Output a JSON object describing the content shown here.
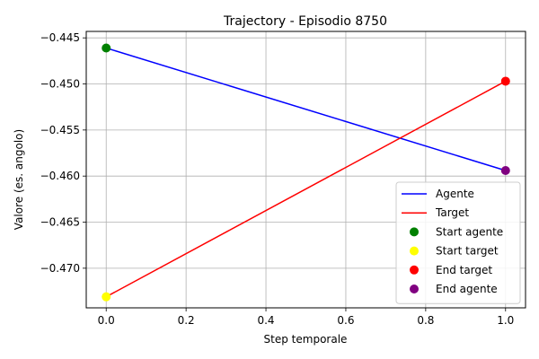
{
  "chart_data": {
    "type": "line",
    "title": "Trajectory - Episodio 8750",
    "xlabel": "Step temporale",
    "ylabel": "Valore (es. angolo)",
    "xlim": [
      -0.05,
      1.05
    ],
    "ylim": [
      -0.4743,
      -0.4443
    ],
    "xticks": [
      0.0,
      0.2,
      0.4,
      0.6,
      0.8,
      1.0
    ],
    "xtick_labels": [
      "0.0",
      "0.2",
      "0.4",
      "0.6",
      "0.8",
      "1.0"
    ],
    "yticks": [
      -0.47,
      -0.465,
      -0.46,
      -0.455,
      -0.45,
      -0.445
    ],
    "ytick_labels": [
      "−0.470",
      "−0.465",
      "−0.460",
      "−0.455",
      "−0.450",
      "−0.445"
    ],
    "grid": true,
    "legend_position": "lower-right",
    "series": [
      {
        "name": "Agente",
        "kind": "line",
        "color": "#0000ff",
        "x": [
          0,
          1
        ],
        "y": [
          -0.4461,
          -0.4594
        ]
      },
      {
        "name": "Target",
        "kind": "line",
        "color": "#ff0000",
        "x": [
          0,
          1
        ],
        "y": [
          -0.4731,
          -0.4497
        ]
      },
      {
        "name": "Start agente",
        "kind": "point",
        "color": "#008000",
        "x": [
          0
        ],
        "y": [
          -0.4461
        ]
      },
      {
        "name": "Start target",
        "kind": "point",
        "color": "#ffff00",
        "x": [
          0
        ],
        "y": [
          -0.4731
        ]
      },
      {
        "name": "End target",
        "kind": "point",
        "color": "#ff0000",
        "x": [
          1
        ],
        "y": [
          -0.4497
        ]
      },
      {
        "name": "End agente",
        "kind": "point",
        "color": "#800080",
        "x": [
          1
        ],
        "y": [
          -0.4594
        ]
      }
    ]
  }
}
